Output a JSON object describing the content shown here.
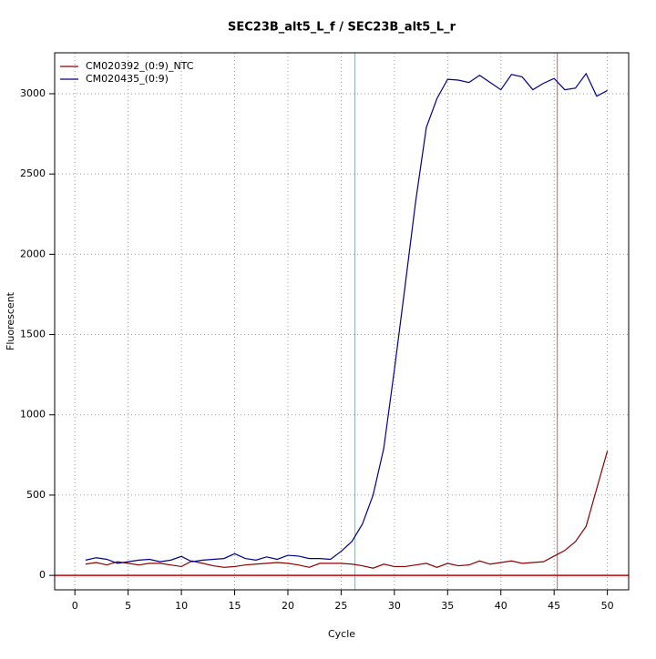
{
  "chart_data": {
    "type": "line",
    "title": "SEC23B_alt5_L_f / SEC23B_alt5_L_r",
    "x_label": "Cycle",
    "y_label": "Fluorescent",
    "x": [
      1,
      2,
      3,
      4,
      5,
      6,
      7,
      8,
      9,
      10,
      11,
      12,
      13,
      14,
      15,
      16,
      17,
      18,
      19,
      20,
      21,
      22,
      23,
      24,
      25,
      26,
      27,
      28,
      29,
      30,
      31,
      32,
      33,
      34,
      35,
      36,
      37,
      38,
      39,
      40,
      41,
      42,
      43,
      44,
      45,
      46,
      47,
      48,
      49,
      50
    ],
    "series": [
      {
        "name": "CM020392_(0:9)_NTC",
        "color": "#8b0000",
        "values": [
          70,
          80,
          65,
          85,
          75,
          65,
          75,
          75,
          65,
          55,
          90,
          75,
          60,
          50,
          55,
          65,
          70,
          75,
          80,
          75,
          65,
          50,
          75,
          75,
          75,
          70,
          60,
          45,
          70,
          55,
          55,
          65,
          75,
          50,
          75,
          60,
          65,
          90,
          70,
          80,
          90,
          75,
          80,
          85,
          120,
          155,
          210,
          305,
          540,
          775
        ]
      },
      {
        "name": "CM020435_(0:9)",
        "color": "#00008b",
        "values": [
          95,
          110,
          100,
          75,
          85,
          95,
          100,
          85,
          95,
          118,
          85,
          95,
          100,
          105,
          135,
          105,
          95,
          115,
          100,
          125,
          120,
          105,
          105,
          100,
          150,
          210,
          320,
          500,
          790,
          1280,
          1800,
          2330,
          2790,
          2970,
          3090,
          3085,
          3070,
          3115,
          3070,
          3025,
          3120,
          3105,
          3025,
          3065,
          3095,
          3025,
          3035,
          3125,
          2985,
          3020
        ]
      }
    ],
    "xlim": [
      -1.9,
      52
    ],
    "ylim": [
      -90,
      3255
    ],
    "xticks": [
      0,
      5,
      10,
      15,
      20,
      25,
      30,
      35,
      40,
      45,
      50
    ],
    "yticks": [
      0,
      500,
      1000,
      1500,
      2000,
      2500,
      3000
    ],
    "grid": true,
    "legend": "top-left",
    "vlines": [
      {
        "value": 26.3,
        "color": "#00e5ee"
      },
      {
        "value": 45.3,
        "color": "#cd5c5c"
      }
    ],
    "hline": {
      "value": 0,
      "color": "#cd0000"
    }
  }
}
